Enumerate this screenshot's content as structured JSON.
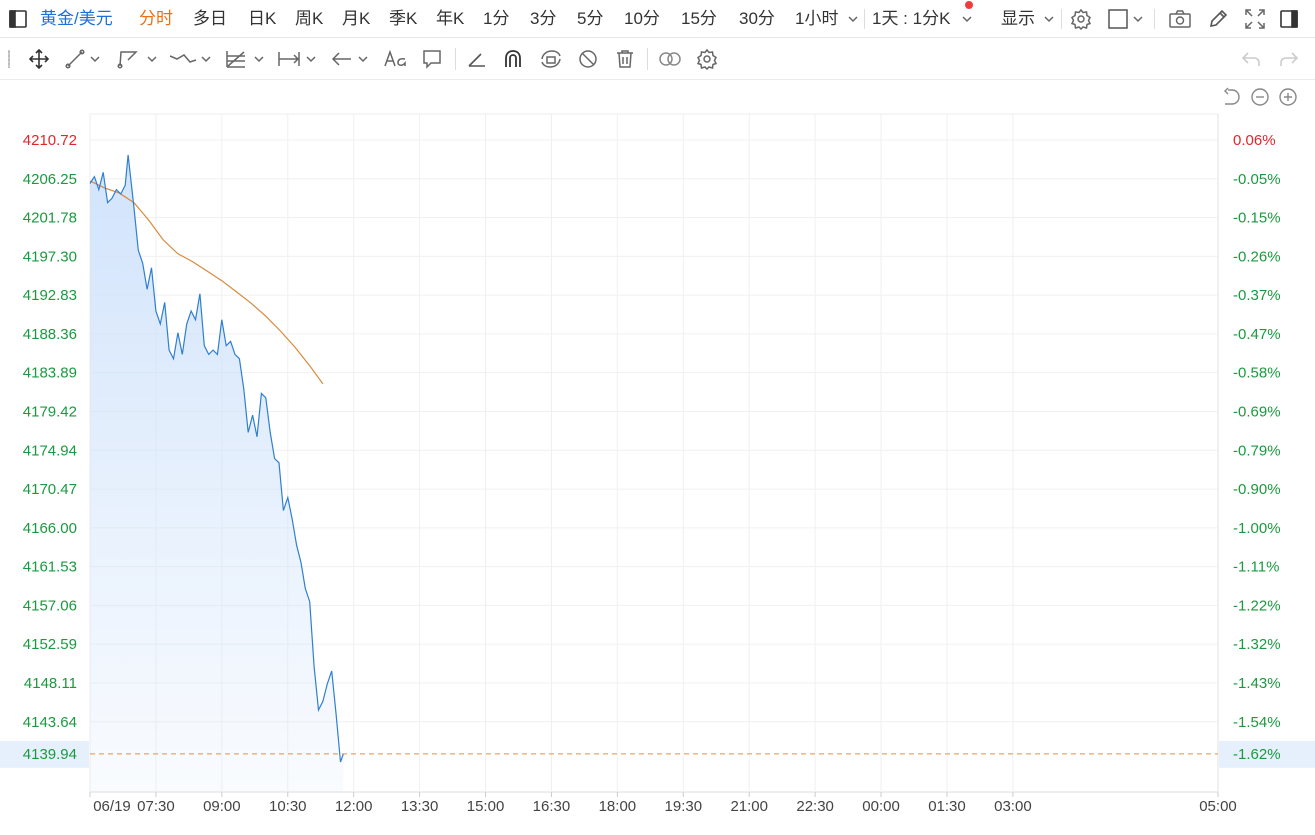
{
  "toolbar": {
    "symbol": "黄金/美元",
    "periods": [
      "分时",
      "多日",
      "日K",
      "周K",
      "月K",
      "季K",
      "年K",
      "1分",
      "3分",
      "5分",
      "10分",
      "15分",
      "30分",
      "1小时"
    ],
    "active_period": "分时",
    "interval_select": "1天 : 1分K",
    "display_label": "显示"
  },
  "icons": {
    "sidebar_toggle": "sidebar-toggle-icon",
    "settings": "gear-icon",
    "layout": "square-icon",
    "screenshot": "camera-icon",
    "draw": "pencil-icon",
    "fullscreen": "fullscreen-icon",
    "panel": "panel-icon"
  },
  "drawing_tools": [
    "move-icon",
    "line-icon",
    "polyline-icon",
    "wave-icon",
    "fib-icon",
    "measure-icon",
    "arrow-icon",
    "text-icon",
    "comment-icon",
    "ruler-icon",
    "magnet-icon",
    "lock-icon",
    "hide-icon",
    "trash-icon",
    "link-icon",
    "tool-settings-icon"
  ],
  "chart_data": {
    "type": "line",
    "x_tick_labels": [
      "06/19",
      "07:30",
      "09:00",
      "10:30",
      "12:00",
      "13:30",
      "15:00",
      "16:30",
      "18:00",
      "19:30",
      "21:00",
      "22:30",
      "00:00",
      "01:30",
      "03:00",
      "05:00"
    ],
    "y_tick_labels": [
      "4210.72",
      "4206.25",
      "4201.78",
      "4197.30",
      "4192.83",
      "4188.36",
      "4183.89",
      "4179.42",
      "4174.94",
      "4170.47",
      "4166.00",
      "4161.53",
      "4157.06",
      "4152.59",
      "4148.11",
      "4143.64"
    ],
    "y_pct_labels": [
      "0.06%",
      "-0.05%",
      "-0.15%",
      "-0.26%",
      "-0.37%",
      "-0.47%",
      "-0.58%",
      "-0.69%",
      "-0.79%",
      "-0.90%",
      "-1.00%",
      "-1.11%",
      "-1.22%",
      "-1.32%",
      "-1.43%",
      "-1.54%"
    ],
    "ylim": [
      4139.0,
      4210.72
    ],
    "x_minutes_per_tick": 90,
    "x_range_minutes": [
      0,
      1350
    ],
    "current_price": "4139.94",
    "current_pct": "-1.62%",
    "colors": {
      "price_line": "#2f7fd0",
      "avg_line": "#d98a3c",
      "area_top": "#cfe2fb",
      "up_text": "#e0262b",
      "down_text": "#1a9a3f",
      "current_line": "#e8903e",
      "current_bg": "#e6f0fc"
    },
    "series": [
      {
        "role": "price",
        "points": [
          [
            0,
            4205.7
          ],
          [
            6,
            4206.5
          ],
          [
            12,
            4205.0
          ],
          [
            18,
            4207.0
          ],
          [
            24,
            4203.5
          ],
          [
            30,
            4204.0
          ],
          [
            36,
            4205.0
          ],
          [
            42,
            4204.5
          ],
          [
            48,
            4205.5
          ],
          [
            52,
            4209.0
          ],
          [
            56,
            4206.0
          ],
          [
            60,
            4203.0
          ],
          [
            66,
            4198.0
          ],
          [
            72,
            4196.5
          ],
          [
            78,
            4193.5
          ],
          [
            84,
            4196.0
          ],
          [
            90,
            4191.0
          ],
          [
            96,
            4189.5
          ],
          [
            102,
            4192.0
          ],
          [
            108,
            4186.5
          ],
          [
            114,
            4185.5
          ],
          [
            120,
            4188.5
          ],
          [
            126,
            4186.0
          ],
          [
            132,
            4189.5
          ],
          [
            138,
            4191.0
          ],
          [
            144,
            4190.0
          ],
          [
            150,
            4193.0
          ],
          [
            156,
            4187.0
          ],
          [
            162,
            4186.0
          ],
          [
            168,
            4186.5
          ],
          [
            174,
            4186.0
          ],
          [
            180,
            4190.0
          ],
          [
            186,
            4187.0
          ],
          [
            192,
            4187.5
          ],
          [
            198,
            4186.0
          ],
          [
            204,
            4185.5
          ],
          [
            210,
            4182.0
          ],
          [
            216,
            4177.0
          ],
          [
            222,
            4179.0
          ],
          [
            228,
            4176.5
          ],
          [
            234,
            4181.5
          ],
          [
            240,
            4181.0
          ],
          [
            246,
            4177.0
          ],
          [
            252,
            4174.0
          ],
          [
            258,
            4173.5
          ],
          [
            264,
            4168.0
          ],
          [
            270,
            4169.5
          ],
          [
            276,
            4167.0
          ],
          [
            282,
            4164.0
          ],
          [
            288,
            4162.0
          ],
          [
            294,
            4159.0
          ],
          [
            300,
            4157.5
          ],
          [
            306,
            4150.0
          ],
          [
            312,
            4145.0
          ],
          [
            318,
            4146.0
          ],
          [
            324,
            4148.0
          ],
          [
            330,
            4149.5
          ],
          [
            336,
            4144.5
          ],
          [
            342,
            4139.0
          ],
          [
            346,
            4139.94
          ]
        ]
      },
      {
        "role": "average",
        "points": [
          [
            0,
            4206.0
          ],
          [
            20,
            4205.2
          ],
          [
            40,
            4204.6
          ],
          [
            60,
            4203.5
          ],
          [
            80,
            4201.5
          ],
          [
            100,
            4199.2
          ],
          [
            120,
            4197.6
          ],
          [
            140,
            4196.7
          ],
          [
            160,
            4195.6
          ],
          [
            180,
            4194.5
          ],
          [
            200,
            4193.2
          ],
          [
            220,
            4191.9
          ],
          [
            240,
            4190.4
          ],
          [
            260,
            4188.7
          ],
          [
            280,
            4186.8
          ],
          [
            300,
            4184.7
          ],
          [
            318,
            4182.6
          ]
        ]
      }
    ]
  }
}
